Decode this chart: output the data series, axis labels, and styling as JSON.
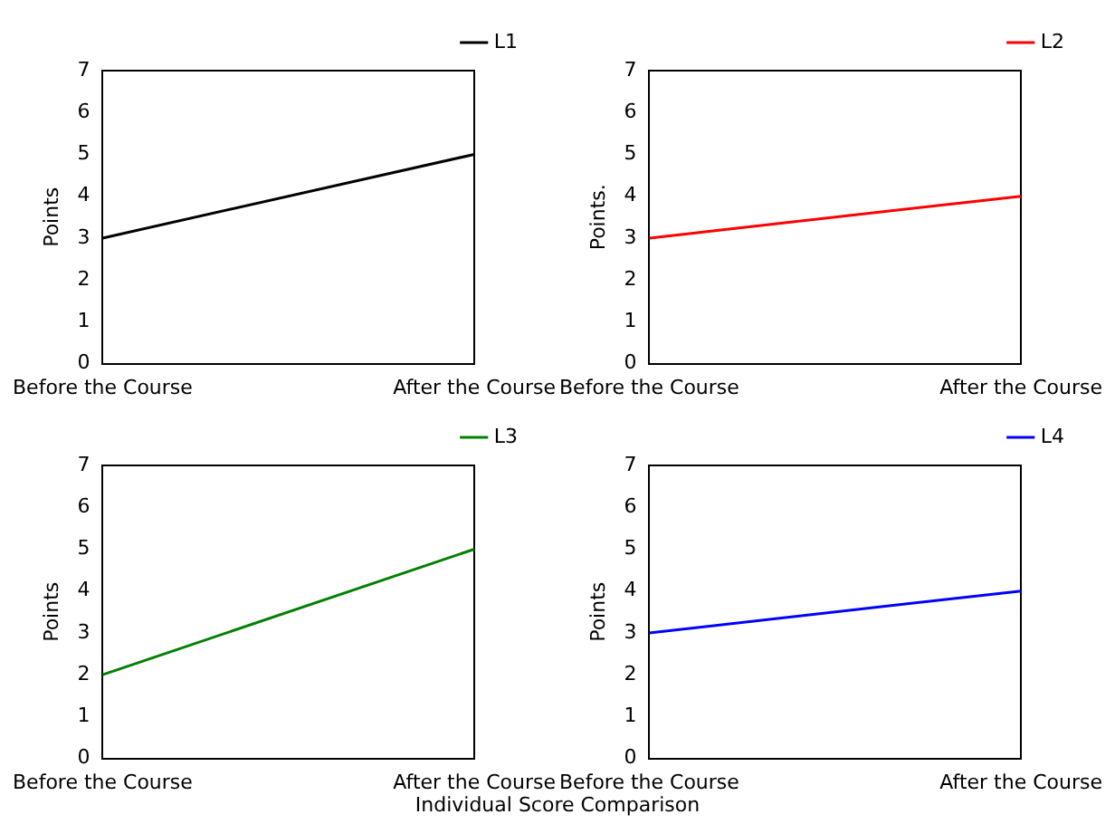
{
  "chart_data": [
    {
      "type": "line",
      "categories": [
        "Before the Course",
        "After the Course"
      ],
      "series": [
        {
          "name": "L1",
          "color": "#000000",
          "values": [
            3,
            5
          ]
        }
      ],
      "ylabel": "Points",
      "ylim": [
        0,
        7
      ],
      "yticks": [
        0,
        1,
        2,
        3,
        4,
        5,
        6,
        7
      ],
      "legend": "top right"
    },
    {
      "type": "line",
      "categories": [
        "Before the Course",
        "After the Course"
      ],
      "series": [
        {
          "name": "L2",
          "color": "#ff0000",
          "values": [
            3,
            4
          ]
        }
      ],
      "ylabel": "Points.",
      "ylim": [
        0,
        7
      ],
      "yticks": [
        0,
        1,
        2,
        3,
        4,
        5,
        6,
        7
      ],
      "legend": "top right"
    },
    {
      "type": "line",
      "categories": [
        "Before the Course",
        "After the Course"
      ],
      "series": [
        {
          "name": "L3",
          "color": "#008000",
          "values": [
            2,
            5
          ]
        }
      ],
      "ylabel": "Points",
      "ylim": [
        0,
        7
      ],
      "yticks": [
        0,
        1,
        2,
        3,
        4,
        5,
        6,
        7
      ],
      "legend": "top right"
    },
    {
      "type": "line",
      "categories": [
        "Before the Course",
        "After the Course"
      ],
      "series": [
        {
          "name": "L4",
          "color": "#0000ff",
          "values": [
            3,
            4
          ]
        }
      ],
      "ylabel": "Points",
      "ylim": [
        0,
        7
      ],
      "yticks": [
        0,
        1,
        2,
        3,
        4,
        5,
        6,
        7
      ],
      "legend": "top right",
      "annotations": [
        "Individual Score Comparison"
      ]
    }
  ]
}
